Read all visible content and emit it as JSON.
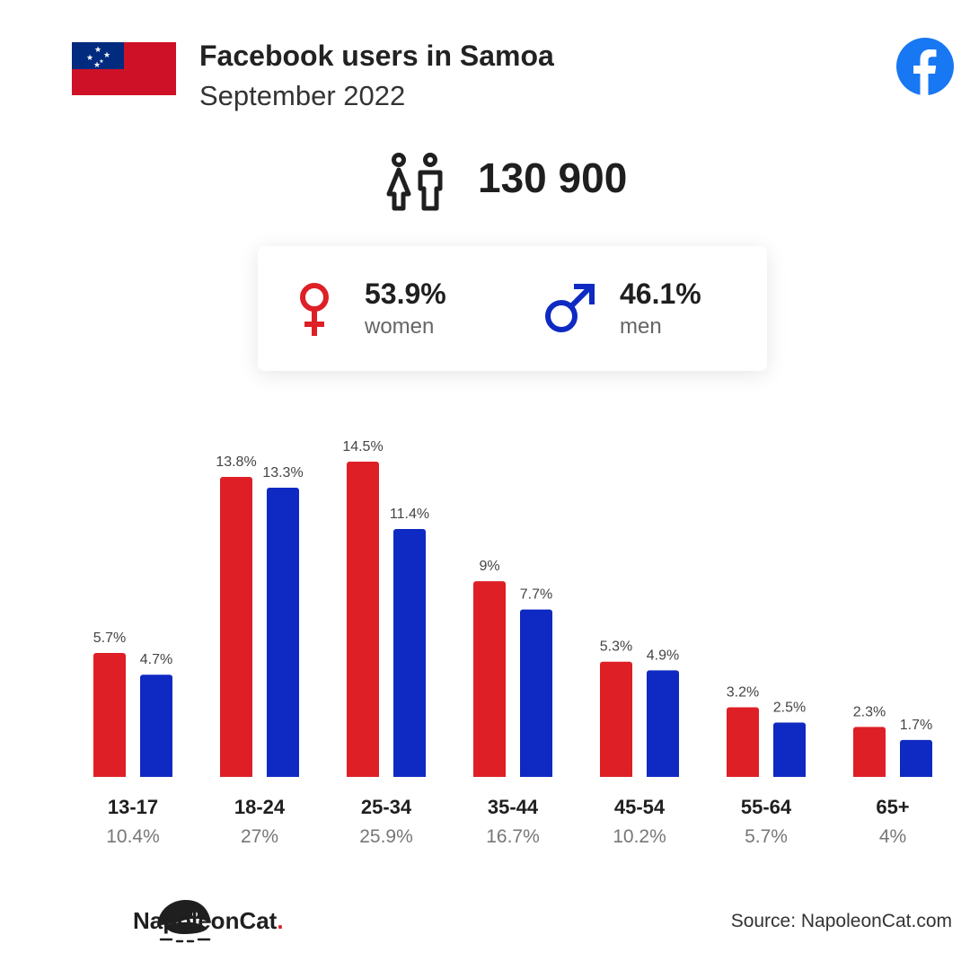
{
  "header": {
    "title": "Facebook users in Samoa",
    "subtitle": "September 2022"
  },
  "summary": {
    "total_users": "130 900"
  },
  "gender": {
    "women_pct": "53.9%",
    "women_label": "women",
    "men_pct": "46.1%",
    "men_label": "men"
  },
  "colors": {
    "women": "#de1f26",
    "men": "#0e2ac2"
  },
  "chart_data": {
    "type": "bar",
    "categories": [
      "13-17",
      "18-24",
      "25-34",
      "35-44",
      "45-54",
      "55-64",
      "65+"
    ],
    "category_totals": [
      "10.4%",
      "27%",
      "25.9%",
      "16.7%",
      "10.2%",
      "5.7%",
      "4%"
    ],
    "series": [
      {
        "key": "women",
        "values": [
          5.7,
          13.8,
          14.5,
          9,
          5.3,
          3.2,
          2.3
        ],
        "labels": [
          "5.7%",
          "13.8%",
          "14.5%",
          "9%",
          "5.3%",
          "3.2%",
          "2.3%"
        ]
      },
      {
        "key": "men",
        "values": [
          4.7,
          13.3,
          11.4,
          7.7,
          4.9,
          2.5,
          1.7
        ],
        "labels": [
          "4.7%",
          "13.3%",
          "11.4%",
          "7.7%",
          "4.9%",
          "2.5%",
          "1.7%"
        ]
      }
    ],
    "ylim": [
      0,
      14.5
    ],
    "grid": false,
    "legend": "none"
  },
  "footer": {
    "brand_name": "NapoleonCat",
    "brand_dot": ".",
    "source": "Source: NapoleonCat.com"
  }
}
